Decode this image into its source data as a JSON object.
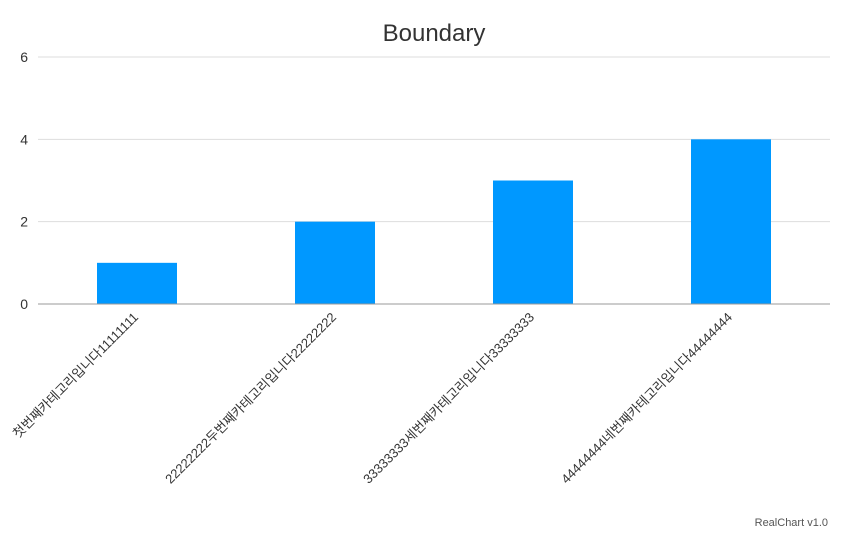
{
  "chart_data": {
    "type": "bar",
    "title": "Boundary",
    "categories": [
      "첫번째카테고리입니다11111111",
      "22222222두번째카테고리입니다22222222",
      "33333333세번째카테고리입니다33333333",
      "44444444네번째카테고리입니다44444444"
    ],
    "values": [
      1,
      2,
      3,
      4
    ],
    "ylim": [
      0,
      6
    ],
    "yticks": [
      "0",
      "2",
      "4",
      "6"
    ],
    "grid": true,
    "colors": {
      "bar": "#0098ff",
      "grid": "#dddddd",
      "axis": "#999999"
    }
  },
  "credit": "RealChart v1.0"
}
